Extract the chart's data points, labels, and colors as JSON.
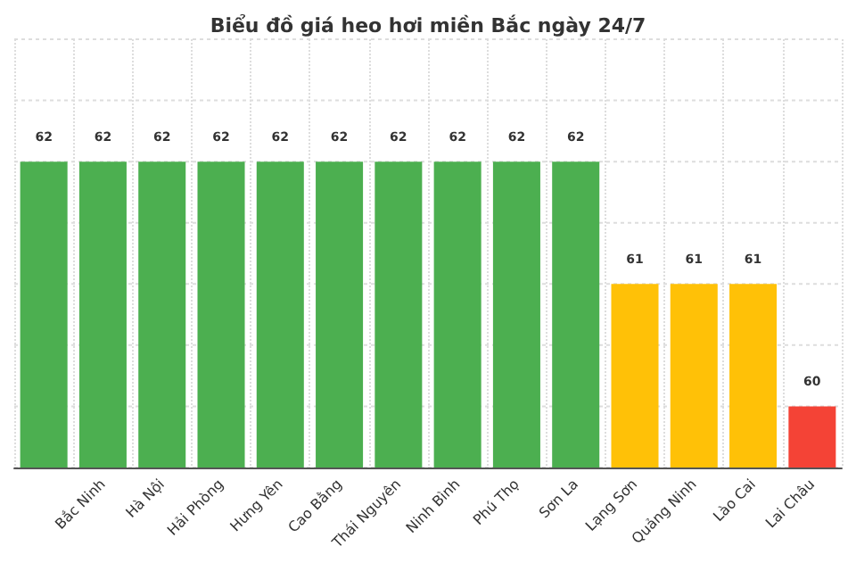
{
  "chart_data": {
    "type": "bar",
    "title": "Biểu đồ giá heo hơi miền Bắc ngày 24/7",
    "categories": [
      null,
      "Bắc Ninh",
      "Hà Nội",
      "Hải Phòng",
      "Hưng Yên",
      "Cao Bằng",
      "Thái Nguyên",
      "Ninh Bình",
      "Phú Thọ",
      "Sơn La",
      "Lạng Sơn",
      "Quảng Ninh",
      "Lào Cai",
      "Lai Châu"
    ],
    "values": [
      62,
      62,
      62,
      62,
      62,
      62,
      62,
      62,
      62,
      62,
      61,
      61,
      61,
      60
    ],
    "colors": [
      "#4caf50",
      "#4caf50",
      "#4caf50",
      "#4caf50",
      "#4caf50",
      "#4caf50",
      "#4caf50",
      "#4caf50",
      "#4caf50",
      "#4caf50",
      "#ffc107",
      "#ffc107",
      "#ffc107",
      "#f44336"
    ],
    "ylim": [
      59.5,
      63
    ],
    "yticks": [
      {
        "value": 59.5,
        "label": null
      },
      {
        "value": 60,
        "label": null
      },
      {
        "value": 60.5,
        "label": null
      },
      {
        "value": 61,
        "label": null
      },
      {
        "value": 61.5,
        "label": null
      },
      {
        "value": 62,
        "label": null
      },
      {
        "value": 62.5,
        "label": null
      },
      {
        "value": 63,
        "label": null
      }
    ],
    "tick_labels": "x",
    "grid": true,
    "data_labels": true
  }
}
